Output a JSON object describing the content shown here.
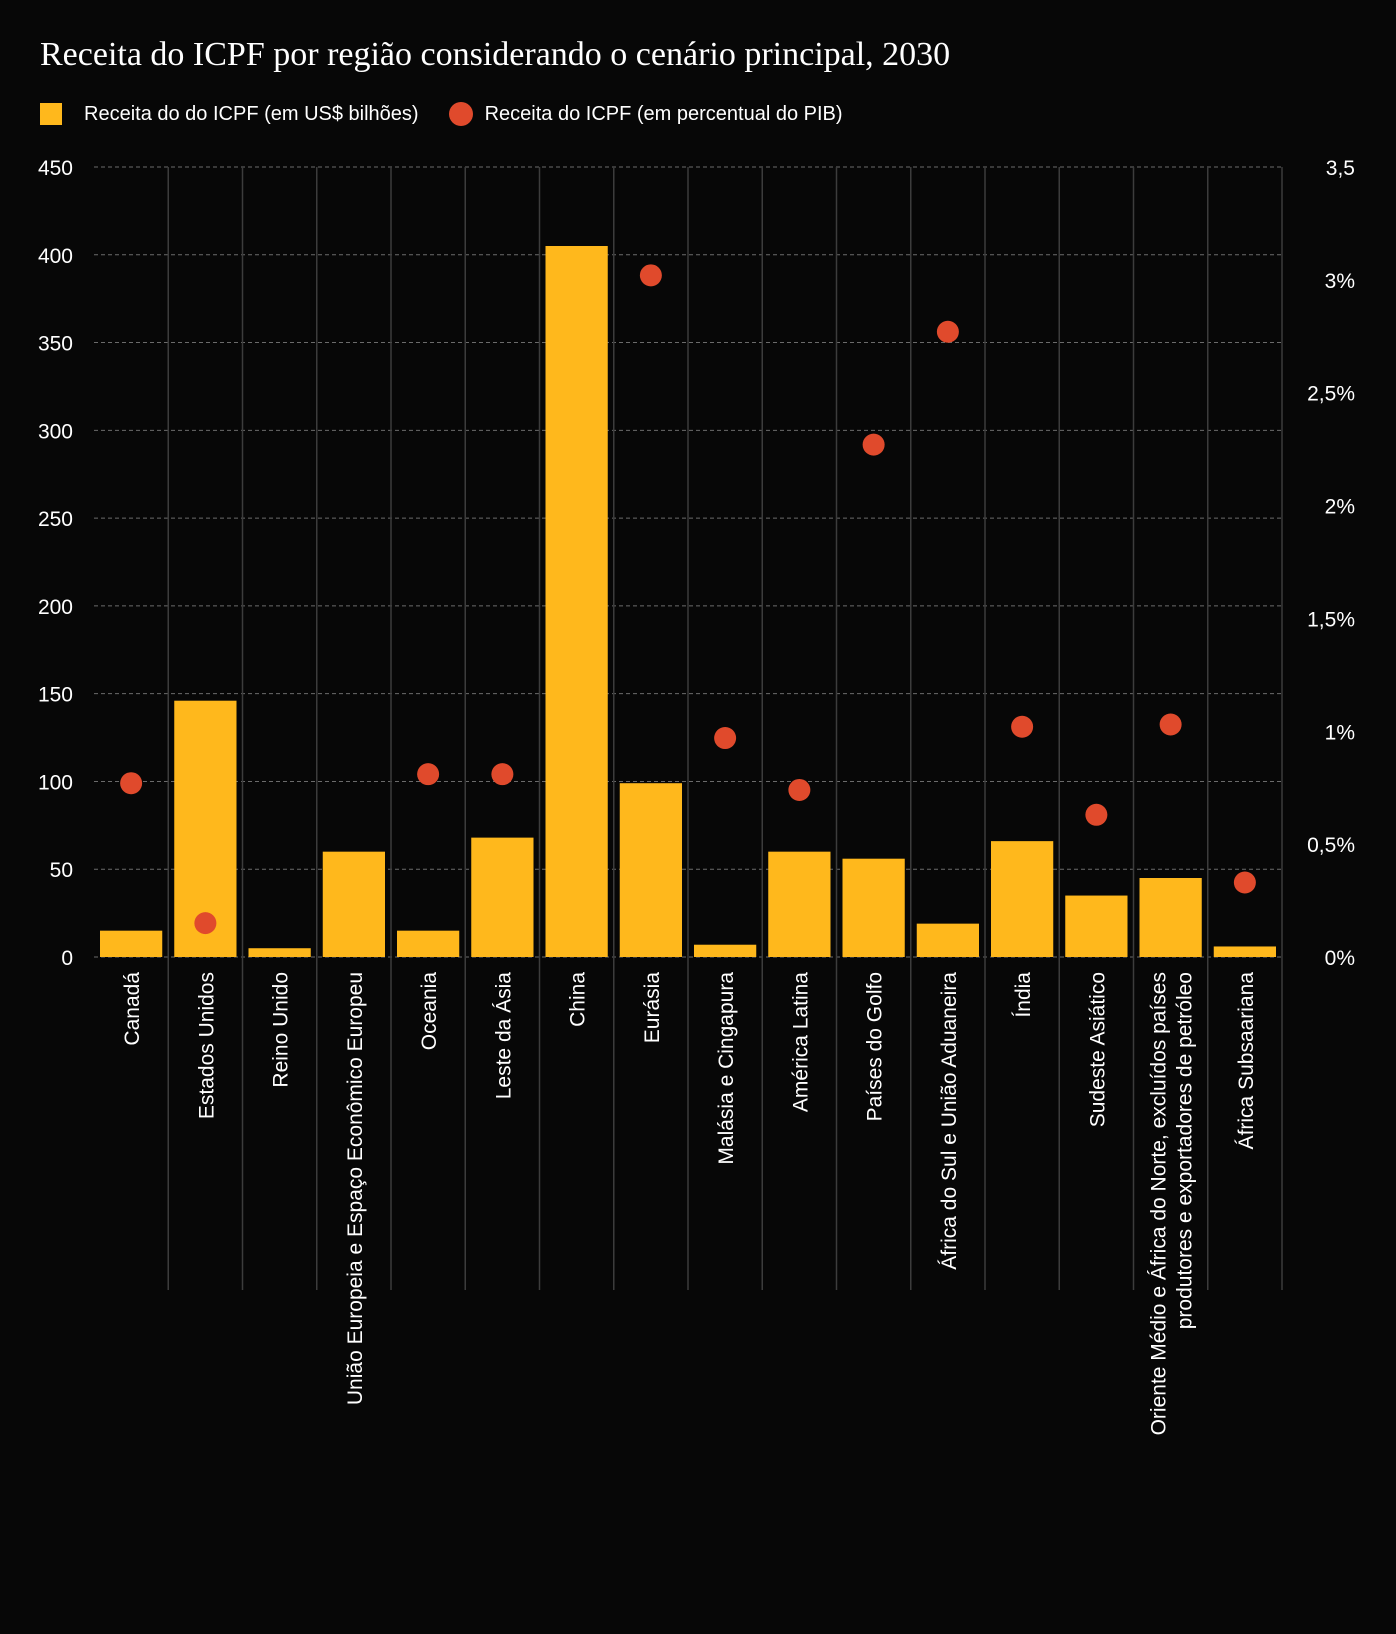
{
  "title": "Receita do ICPF por região considerando o cenário principal, 2030",
  "legend": {
    "bars_label": "Receita do do ICPF (em US$ bilhões)",
    "dots_label": "Receita do ICPF (em percentual do PIB)"
  },
  "colors": {
    "background": "#070707",
    "bar": "#ffb81c",
    "dot": "#e04a2c",
    "grid": "#6b6b6b",
    "separator": "#3c3c3c",
    "text": "#ffffff"
  },
  "chart_data": {
    "type": "bar",
    "title": "Receita do ICPF por região considerando o cenário principal, 2030",
    "categories": [
      "Canadá",
      "Estados Unidos",
      "Reino Unido",
      "União Europeia e Espaço Econômico Europeu",
      "Oceania",
      "Leste da Ásia",
      "China",
      "Eurásia",
      "Malásia e Cingapura",
      "América Latina",
      "Países do Golfo",
      "África do Sul e União Aduaneira",
      "Índia",
      "Sudeste Asiático",
      "Oriente Médio e África do Norte, excluídos países produtores e exportadores de petróleo",
      "África Subsaariana"
    ],
    "category_lines": [
      [
        "Canadá"
      ],
      [
        "Estados Unidos"
      ],
      [
        "Reino Unido"
      ],
      [
        "União Europeia e Espaço Econômico Europeu"
      ],
      [
        "Oceania"
      ],
      [
        "Leste da Ásia"
      ],
      [
        "China"
      ],
      [
        "Eurásia"
      ],
      [
        "Malásia e Cingapura"
      ],
      [
        "América Latina"
      ],
      [
        "Países do Golfo"
      ],
      [
        "África do Sul e União Aduaneira"
      ],
      [
        "Índia"
      ],
      [
        "Sudeste Asiático"
      ],
      [
        "Oriente Médio e África do Norte, excluídos países",
        "produtores e exportadores de petróleo"
      ],
      [
        "África Subsaariana"
      ]
    ],
    "series": [
      {
        "name": "Receita do do ICPF (em US$ bilhões)",
        "type": "bar",
        "axis": "left",
        "values": [
          15,
          146,
          5,
          60,
          15,
          68,
          405,
          99,
          7,
          60,
          56,
          19,
          66,
          35,
          45,
          6
        ]
      },
      {
        "name": "Receita do ICPF (em percentual do PIB)",
        "type": "scatter",
        "axis": "right",
        "values": [
          0.77,
          0.15,
          null,
          null,
          0.81,
          0.81,
          null,
          3.02,
          0.97,
          0.74,
          2.27,
          2.77,
          1.02,
          0.63,
          1.03,
          0.33
        ]
      }
    ],
    "y_left": {
      "ylim": [
        0,
        450
      ],
      "ticks": [
        0,
        50,
        100,
        150,
        200,
        250,
        300,
        350,
        400,
        450
      ],
      "tick_labels": [
        "0",
        "50",
        "100",
        "150",
        "200",
        "250",
        "300",
        "350",
        "400",
        "450"
      ]
    },
    "y_right": {
      "ylim": [
        0,
        3.5
      ],
      "ticks": [
        0,
        0.5,
        1,
        1.5,
        2,
        2.5,
        3,
        3.5
      ],
      "tick_labels": [
        "0%",
        "0,5%",
        "1%",
        "1,5%",
        "2%",
        "2,5%",
        "3%",
        "3,5"
      ]
    },
    "grid": true,
    "legend_position": "top-left"
  }
}
